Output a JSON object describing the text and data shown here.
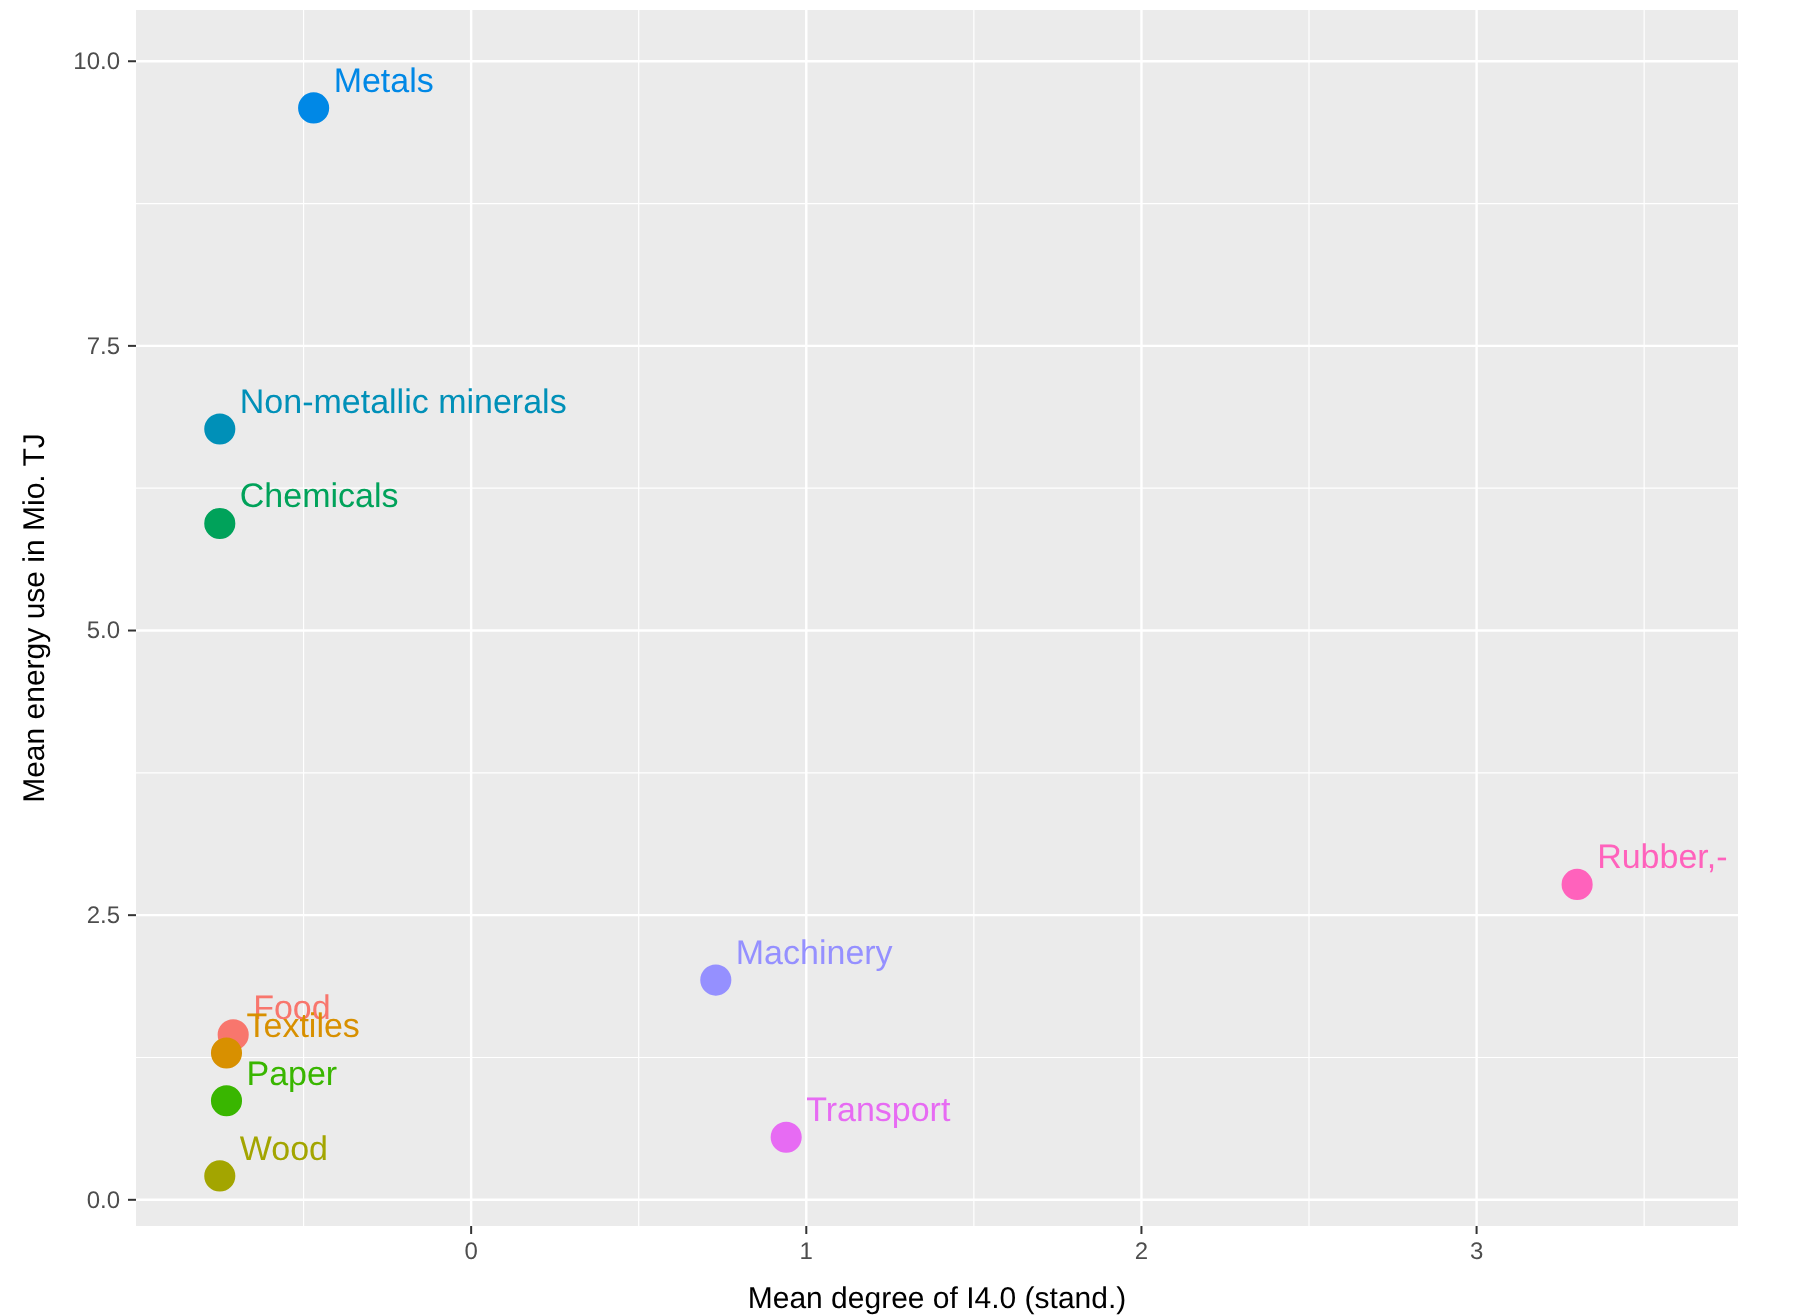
{
  "chart_data": {
    "type": "scatter",
    "xlabel": "Mean degree of I4.0 (stand.)",
    "ylabel": "Mean energy use in Mio. TJ",
    "xlim": [
      -1.0,
      3.78
    ],
    "xticks": [
      0,
      1,
      2,
      3
    ],
    "ylim": [
      -0.23,
      10.45
    ],
    "yticks": [
      {
        "value": 0,
        "label": "0.0"
      },
      {
        "value": 2.5,
        "label": "2.5"
      },
      {
        "value": 5,
        "label": "5.0"
      },
      {
        "value": 7.5,
        "label": "7.5"
      },
      {
        "value": 10,
        "label": "10.0"
      }
    ],
    "grid": true,
    "marker": "circle",
    "series": [
      {
        "name": "Food",
        "color": "#f8766d",
        "x": [
          -0.71
        ],
        "values": [
          1.45
        ]
      },
      {
        "name": "Textiles",
        "color": "#d89000",
        "x": [
          -0.73
        ],
        "values": [
          1.29
        ]
      },
      {
        "name": "Wood",
        "color": "#a3a500",
        "x": [
          -0.75
        ],
        "values": [
          0.21
        ]
      },
      {
        "name": "Paper",
        "color": "#39b600",
        "x": [
          -0.73
        ],
        "values": [
          0.87
        ]
      },
      {
        "name": "Chemicals",
        "color": "#00a25a",
        "x": [
          -0.75
        ],
        "values": [
          5.94
        ]
      },
      {
        "name": "Non-metallic minerals",
        "color": "#0090b8",
        "x": [
          -0.75
        ],
        "values": [
          6.77
        ]
      },
      {
        "name": "Metals",
        "color": "#0088e6",
        "x": [
          -0.47
        ],
        "values": [
          9.59
        ]
      },
      {
        "name": "Machinery",
        "color": "#9590ff",
        "x": [
          0.73
        ],
        "values": [
          1.93
        ]
      },
      {
        "name": "Transport",
        "color": "#e76bf3",
        "x": [
          0.94
        ],
        "values": [
          0.55
        ]
      },
      {
        "name": "Rubber,-",
        "color": "#ff62bc",
        "x": [
          3.3
        ],
        "values": [
          2.77
        ]
      }
    ]
  }
}
